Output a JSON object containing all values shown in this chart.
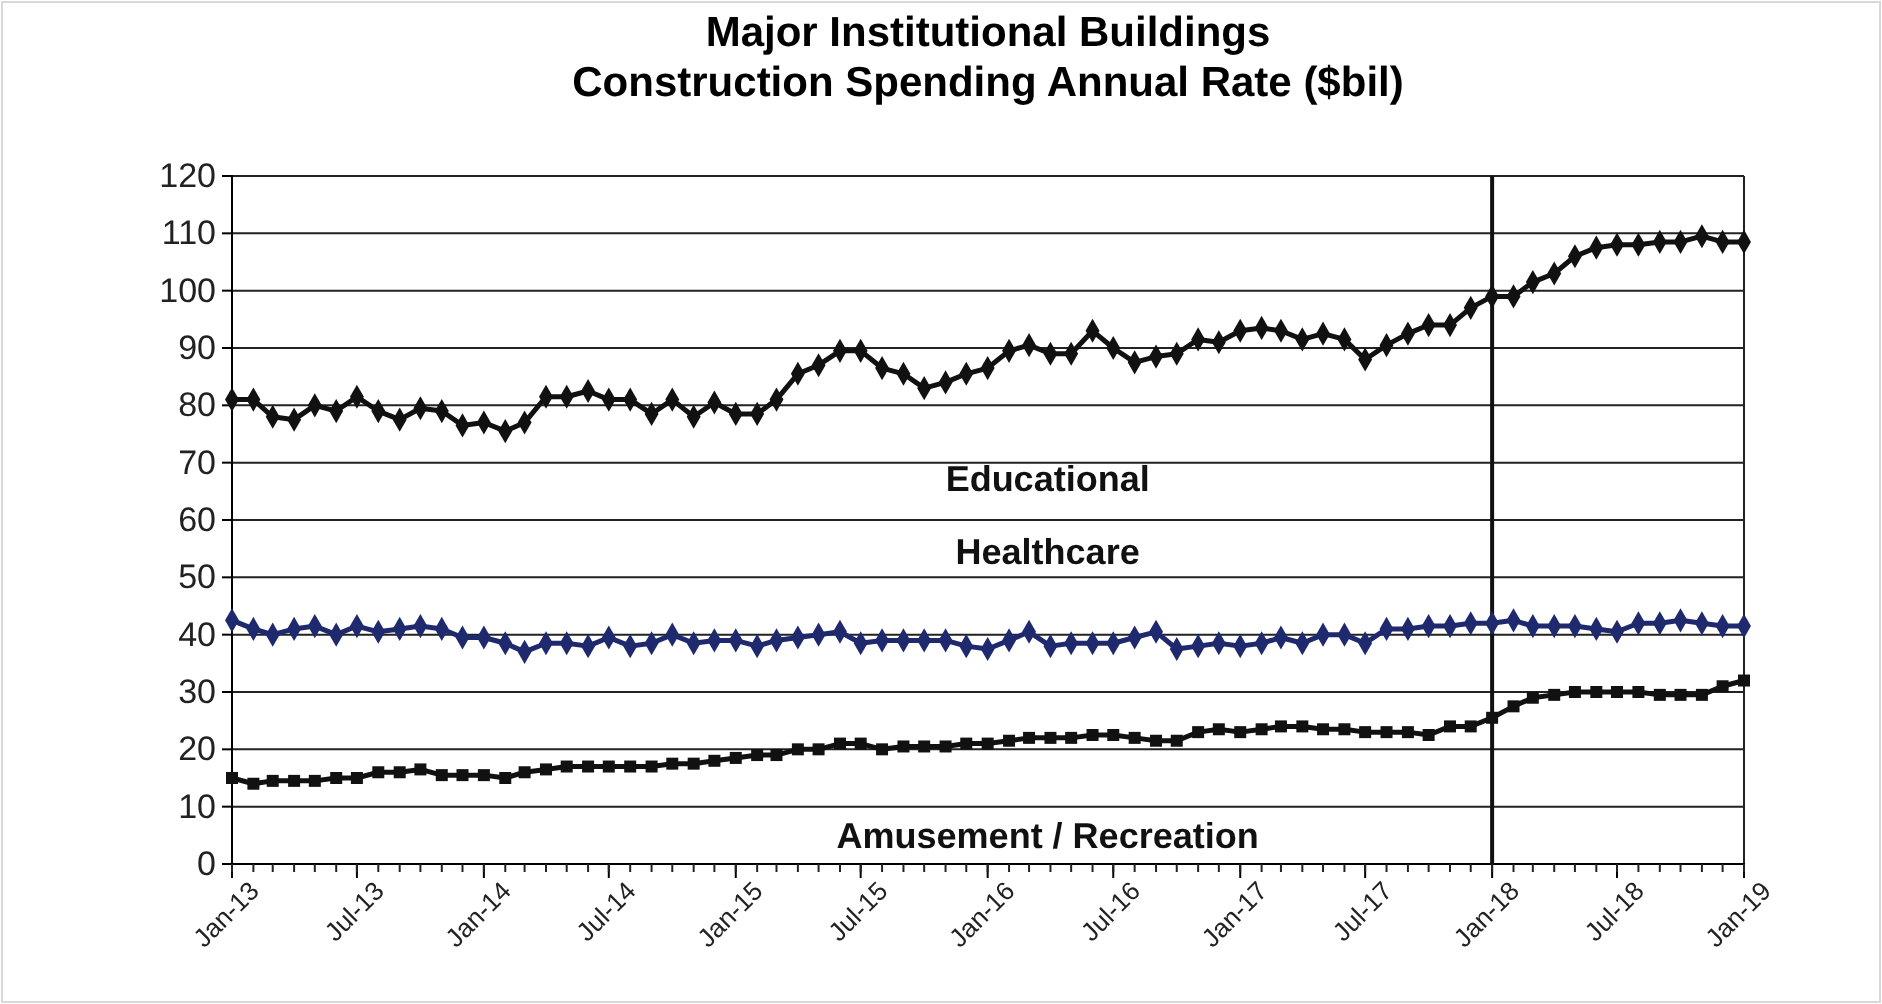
{
  "chart_data": {
    "type": "line",
    "title": "Major Institutional Buildings\nConstruction Spending Annual Rate ($bil)",
    "x": [
      "2013-01",
      "2013-02",
      "2013-03",
      "2013-04",
      "2013-05",
      "2013-06",
      "2013-07",
      "2013-08",
      "2013-09",
      "2013-10",
      "2013-11",
      "2013-12",
      "2014-01",
      "2014-02",
      "2014-03",
      "2014-04",
      "2014-05",
      "2014-06",
      "2014-07",
      "2014-08",
      "2014-09",
      "2014-10",
      "2014-11",
      "2014-12",
      "2015-01",
      "2015-02",
      "2015-03",
      "2015-04",
      "2015-05",
      "2015-06",
      "2015-07",
      "2015-08",
      "2015-09",
      "2015-10",
      "2015-11",
      "2015-12",
      "2016-01",
      "2016-02",
      "2016-03",
      "2016-04",
      "2016-05",
      "2016-06",
      "2016-07",
      "2016-08",
      "2016-09",
      "2016-10",
      "2016-11",
      "2016-12",
      "2017-01",
      "2017-02",
      "2017-03",
      "2017-04",
      "2017-05",
      "2017-06",
      "2017-07",
      "2017-08",
      "2017-09",
      "2017-10",
      "2017-11",
      "2017-12",
      "2018-01",
      "2018-02",
      "2018-03",
      "2018-04",
      "2018-05",
      "2018-06",
      "2018-07",
      "2018-08",
      "2018-09",
      "2018-10",
      "2018-11",
      "2018-12",
      "2019-01"
    ],
    "series": [
      {
        "name": "Educational",
        "color": "#111111",
        "marker": "diamond",
        "values": [
          81,
          81,
          78,
          77.5,
          80,
          79,
          81.5,
          79,
          77.5,
          79.5,
          79,
          76.5,
          77,
          75.5,
          77,
          81.5,
          81.5,
          82.5,
          81,
          81,
          78.5,
          81,
          78,
          80.5,
          78.5,
          78.5,
          81,
          85.5,
          87,
          89.5,
          89.5,
          86.5,
          85.5,
          83,
          84,
          85.5,
          86.5,
          89.5,
          90.5,
          89,
          89,
          93,
          90,
          87.5,
          88.5,
          89,
          91.5,
          91,
          93,
          93.5,
          93,
          91.5,
          92.5,
          91.5,
          88,
          90.5,
          92.5,
          94,
          94,
          97,
          99,
          99,
          101.5,
          103,
          106,
          107.5,
          108,
          108,
          108.5,
          108.5,
          109.5,
          108.5,
          108.5
        ]
      },
      {
        "name": "Healthcare",
        "color": "#1f2a6e",
        "marker": "diamond",
        "values": [
          42.5,
          41,
          40,
          41,
          41.5,
          40,
          41.5,
          40.5,
          41,
          41.5,
          41,
          39.5,
          39.5,
          38.5,
          37,
          38.5,
          38.5,
          38,
          39.5,
          38,
          38.5,
          40,
          38.5,
          39,
          39,
          38,
          39,
          39.5,
          40,
          40.5,
          38.5,
          39,
          39,
          39,
          39,
          38,
          37.5,
          39,
          40.5,
          38,
          38.5,
          38.5,
          38.5,
          39.5,
          40.5,
          37.5,
          38,
          38.5,
          38,
          38.5,
          39.5,
          38.5,
          40,
          40,
          38.5,
          41,
          41,
          41.5,
          41.5,
          42,
          42,
          42.5,
          41.5,
          41.5,
          41.5,
          41,
          40.5,
          42,
          42,
          42.5,
          42,
          41.5,
          41.5
        ]
      },
      {
        "name": "Amusement / Recreation",
        "color": "#111111",
        "marker": "square",
        "values": [
          15,
          14,
          14.5,
          14.5,
          14.5,
          15,
          15,
          16,
          16,
          16.5,
          15.5,
          15.5,
          15.5,
          15,
          16,
          16.5,
          17,
          17,
          17,
          17,
          17,
          17.5,
          17.5,
          18,
          18.5,
          19,
          19,
          20,
          20,
          21,
          21,
          20,
          20.5,
          20.5,
          20.5,
          21,
          21,
          21.5,
          22,
          22,
          22,
          22.5,
          22.5,
          22,
          21.5,
          21.5,
          23,
          23.5,
          23,
          23.5,
          24,
          24,
          23.5,
          23.5,
          23,
          23,
          23,
          22.5,
          24,
          24,
          25.5,
          27.5,
          29,
          29.5,
          30,
          30,
          30,
          30,
          29.5,
          29.5,
          29.5,
          31,
          32
        ]
      }
    ],
    "xlim": [
      "2013-01",
      "2019-01"
    ],
    "xticks": [
      {
        "value": "2013-01",
        "label": "Jan-13"
      },
      {
        "value": "2013-07",
        "label": "Jul-13"
      },
      {
        "value": "2014-01",
        "label": "Jan-14"
      },
      {
        "value": "2014-07",
        "label": "Jul-14"
      },
      {
        "value": "2015-01",
        "label": "Jan-15"
      },
      {
        "value": "2015-07",
        "label": "Jul-15"
      },
      {
        "value": "2016-01",
        "label": "Jan-16"
      },
      {
        "value": "2016-07",
        "label": "Jul-16"
      },
      {
        "value": "2017-01",
        "label": "Jan-17"
      },
      {
        "value": "2017-07",
        "label": "Jul-17"
      },
      {
        "value": "2018-01",
        "label": "Jan-18"
      },
      {
        "value": "2018-07",
        "label": "Jul-18"
      },
      {
        "value": "2019-01",
        "label": "Jan-19"
      }
    ],
    "ylim": [
      0,
      120
    ],
    "yticks": [
      0,
      10,
      20,
      30,
      40,
      50,
      60,
      70,
      80,
      90,
      100,
      110,
      120
    ],
    "grid": "y",
    "ref_lines": [
      {
        "axis": "x",
        "value": "2018-01",
        "color": "#111111"
      }
    ]
  }
}
